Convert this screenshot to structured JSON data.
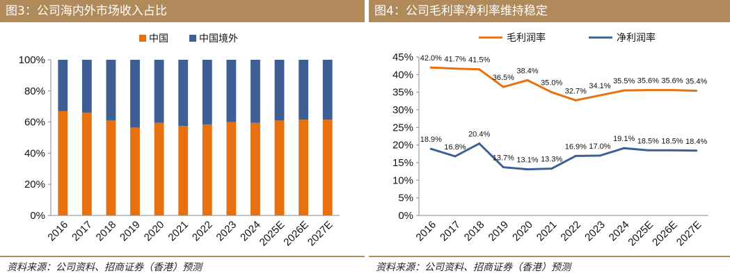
{
  "left": {
    "title": "图3：公司海内外市场收入占比",
    "source": "资料来源：公司资料、招商证券（香港）预测",
    "colors": {
      "domestic": "#e8700f",
      "overseas": "#3d5f96"
    }
  },
  "right": {
    "title": "图4：公司毛利率净利率维持稳定",
    "source": "资料来源：公司资料、招商证券（香港）预测",
    "colors": {
      "gross": "#e8700f",
      "net": "#3d5f96"
    }
  },
  "chart_data": [
    {
      "type": "bar",
      "stacked": true,
      "categories": [
        "2016",
        "2017",
        "2018",
        "2019",
        "2020",
        "2021",
        "2022",
        "2023",
        "2024",
        "2025E",
        "2026E",
        "2027E"
      ],
      "series": [
        {
          "name": "中国",
          "values": [
            67,
            66,
            61,
            56.5,
            59.5,
            57.5,
            58.5,
            60,
            59.5,
            61,
            61.5,
            61.5
          ]
        },
        {
          "name": "中国境外",
          "values": [
            33,
            34,
            39,
            43.5,
            40.5,
            42.5,
            41.5,
            40,
            40.5,
            39,
            38.5,
            38.5
          ]
        }
      ],
      "yticks": [
        "0%",
        "20%",
        "40%",
        "60%",
        "80%",
        "100%"
      ],
      "ylim": [
        0,
        100
      ],
      "legend": "top-center",
      "grid": false
    },
    {
      "type": "line",
      "categories": [
        "2016",
        "2017",
        "2018",
        "2019",
        "2020",
        "2021",
        "2022",
        "2023",
        "2024",
        "2025E",
        "2026E",
        "2027E"
      ],
      "series": [
        {
          "name": "毛利润率",
          "values": [
            42.0,
            41.7,
            41.5,
            36.5,
            38.4,
            35.0,
            32.7,
            34.1,
            35.5,
            35.6,
            35.6,
            35.4
          ],
          "labels": [
            "42.0%",
            "41.7%",
            "41.5%",
            "36.5%",
            "38.4%",
            "35.0%",
            "32.7%",
            "34.1%",
            "35.5%",
            "35.6%",
            "35.6%",
            "35.4%"
          ]
        },
        {
          "name": "净利润率",
          "values": [
            18.9,
            16.8,
            20.4,
            13.7,
            13.1,
            13.3,
            16.9,
            17.0,
            19.1,
            18.5,
            18.5,
            18.4
          ],
          "labels": [
            "18.9%",
            "16.8%",
            "20.4%",
            "13.7%",
            "13.1%",
            "13.3%",
            "16.9%",
            "17.0%",
            "19.1%",
            "18.5%",
            "18.5%",
            "18.4%"
          ]
        }
      ],
      "yticks": [
        "0%",
        "5%",
        "10%",
        "15%",
        "20%",
        "25%",
        "30%",
        "35%",
        "40%",
        "45%"
      ],
      "ylim": [
        0,
        45
      ],
      "legend": "top-center",
      "grid": false
    }
  ]
}
